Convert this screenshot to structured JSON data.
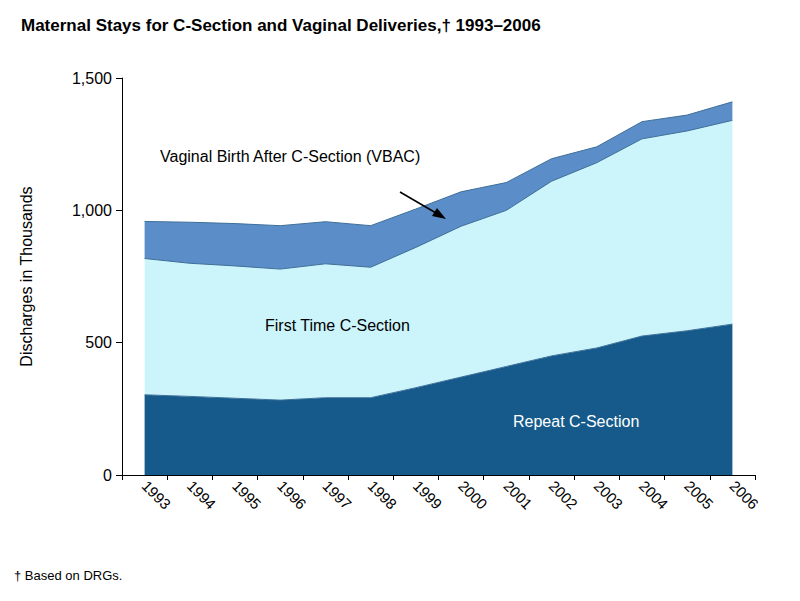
{
  "chart_data": {
    "type": "area",
    "title": "Maternal Stays for C-Section and Vaginal Deliveries,† 1993–2006",
    "footnote": "† Based on DRGs.",
    "y_label": "Discharges in Thousands",
    "categories": [
      "1993",
      "1994",
      "1995",
      "1996",
      "1997",
      "1998",
      "1999",
      "2000",
      "2001",
      "2002",
      "2003",
      "2004",
      "2005",
      "2006"
    ],
    "series": [
      {
        "name": "Repeat C-Section",
        "color": "#155a8a",
        "values": [
          303,
          297,
          290,
          283,
          292,
          292,
          330,
          370,
          410,
          450,
          480,
          525,
          545,
          570
        ]
      },
      {
        "name": "First Time C-Section",
        "color": "#ccf4fb",
        "values": [
          515,
          503,
          500,
          495,
          506,
          493,
          530,
          570,
          590,
          660,
          700,
          745,
          755,
          770
        ]
      },
      {
        "name": "Vaginal Birth After C-Section (VBAC)",
        "color": "#5b8ec8",
        "values": [
          140,
          155,
          160,
          164,
          159,
          157,
          145,
          130,
          105,
          85,
          60,
          65,
          60,
          70
        ]
      }
    ],
    "stacked": true,
    "ylim": [
      0,
      1500
    ],
    "yticks": [
      0,
      500,
      {
        "value": 1000,
        "label": "1,000"
      },
      {
        "value": 1500,
        "label": "1,500"
      }
    ],
    "grid": false,
    "legend": "none"
  }
}
